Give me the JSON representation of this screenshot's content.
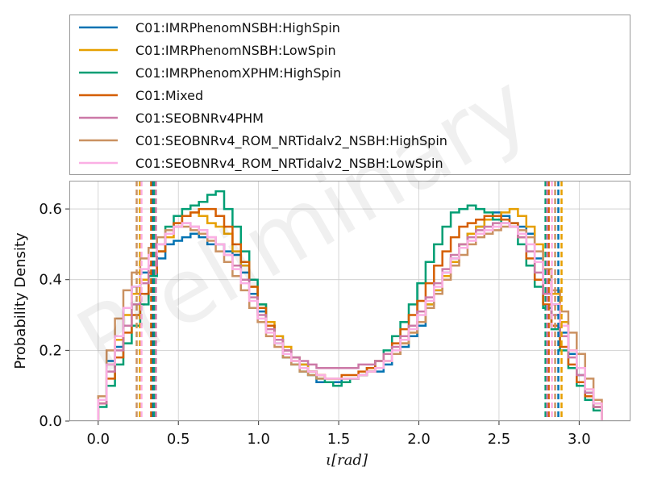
{
  "watermark": "Preliminary",
  "chart_data": {
    "type": "line",
    "step": true,
    "xlabel": "ι[rad]",
    "ylabel": "Probability Density",
    "xlim": [
      -0.18,
      3.32
    ],
    "ylim": [
      0,
      0.68
    ],
    "xticks": [
      "0.0",
      "0.5",
      "1.0",
      "1.5",
      "2.0",
      "2.5",
      "3.0"
    ],
    "yticks": [
      "0.0",
      "0.2",
      "0.4",
      "0.6"
    ],
    "grid": true,
    "legend_position": "top, above plot",
    "series": [
      {
        "name": "C01:IMRPhenomNSBH:HighSpin",
        "color": "#0072b2",
        "edges": [
          0,
          0.0524,
          0.1047,
          0.1571,
          0.2094,
          0.2618,
          0.3142,
          0.3665,
          0.4189,
          0.4712,
          0.5236,
          0.576,
          0.6283,
          0.6807,
          0.733,
          0.7854,
          0.8378,
          0.8901,
          0.9425,
          0.9948,
          1.0472,
          1.0996,
          1.1519,
          1.2043,
          1.2566,
          1.309,
          1.3614,
          1.4137,
          1.4661,
          1.5184,
          1.5708,
          1.6232,
          1.6755,
          1.7279,
          1.7802,
          1.8326,
          1.885,
          1.9373,
          1.9897,
          2.042,
          2.0944,
          2.1468,
          2.1991,
          2.2515,
          2.3038,
          2.3562,
          2.4086,
          2.4609,
          2.5133,
          2.5656,
          2.618,
          2.6704,
          2.7227,
          2.7751,
          2.8274,
          2.8798,
          2.9322,
          2.9845,
          3.0369,
          3.0892,
          3.1416
        ],
        "density": [
          0.06,
          0.17,
          0.21,
          0.32,
          0.38,
          0.42,
          0.44,
          0.46,
          0.5,
          0.51,
          0.52,
          0.53,
          0.52,
          0.5,
          0.5,
          0.48,
          0.47,
          0.42,
          0.36,
          0.31,
          0.27,
          0.24,
          0.2,
          0.18,
          0.16,
          0.14,
          0.11,
          0.11,
          0.11,
          0.12,
          0.12,
          0.13,
          0.14,
          0.14,
          0.16,
          0.19,
          0.21,
          0.24,
          0.27,
          0.33,
          0.37,
          0.42,
          0.46,
          0.5,
          0.53,
          0.55,
          0.57,
          0.59,
          0.58,
          0.56,
          0.55,
          0.53,
          0.46,
          0.4,
          0.33,
          0.25,
          0.19,
          0.13,
          0.08,
          0.04
        ]
      },
      {
        "name": "C01:IMRPhenomNSBH:LowSpin",
        "color": "#e69f00",
        "edges": [
          0,
          0.0524,
          0.1047,
          0.1571,
          0.2094,
          0.2618,
          0.3142,
          0.3665,
          0.4189,
          0.4712,
          0.5236,
          0.576,
          0.6283,
          0.6807,
          0.733,
          0.7854,
          0.8378,
          0.8901,
          0.9425,
          0.9948,
          1.0472,
          1.0996,
          1.1519,
          1.2043,
          1.2566,
          1.309,
          1.3614,
          1.4137,
          1.4661,
          1.5184,
          1.5708,
          1.6232,
          1.6755,
          1.7279,
          1.7802,
          1.8326,
          1.885,
          1.9373,
          1.9897,
          2.042,
          2.0944,
          2.1468,
          2.1991,
          2.2515,
          2.3038,
          2.3562,
          2.4086,
          2.4609,
          2.5133,
          2.5656,
          2.618,
          2.6704,
          2.7227,
          2.7751,
          2.8274,
          2.8798,
          2.9322,
          2.9845,
          3.0369,
          3.0892,
          3.1416
        ],
        "density": [
          0.05,
          0.16,
          0.23,
          0.3,
          0.36,
          0.4,
          0.44,
          0.48,
          0.52,
          0.56,
          0.58,
          0.59,
          0.58,
          0.56,
          0.55,
          0.53,
          0.48,
          0.44,
          0.38,
          0.33,
          0.28,
          0.24,
          0.21,
          0.18,
          0.16,
          0.14,
          0.13,
          0.12,
          0.12,
          0.12,
          0.12,
          0.13,
          0.14,
          0.15,
          0.17,
          0.19,
          0.22,
          0.25,
          0.28,
          0.33,
          0.37,
          0.41,
          0.45,
          0.5,
          0.53,
          0.55,
          0.57,
          0.58,
          0.59,
          0.6,
          0.58,
          0.55,
          0.5,
          0.43,
          0.36,
          0.28,
          0.2,
          0.15,
          0.09,
          0.05
        ]
      },
      {
        "name": "C01:IMRPhenomXPHM:HighSpin",
        "color": "#009e73",
        "edges": [
          0,
          0.0524,
          0.1047,
          0.1571,
          0.2094,
          0.2618,
          0.3142,
          0.3665,
          0.4189,
          0.4712,
          0.5236,
          0.576,
          0.6283,
          0.6807,
          0.733,
          0.7854,
          0.8378,
          0.8901,
          0.9425,
          0.9948,
          1.0472,
          1.0996,
          1.1519,
          1.2043,
          1.2566,
          1.309,
          1.3614,
          1.4137,
          1.4661,
          1.5184,
          1.5708,
          1.6232,
          1.6755,
          1.7279,
          1.7802,
          1.8326,
          1.885,
          1.9373,
          1.9897,
          2.042,
          2.0944,
          2.1468,
          2.1991,
          2.2515,
          2.3038,
          2.3562,
          2.4086,
          2.4609,
          2.5133,
          2.5656,
          2.618,
          2.6704,
          2.7227,
          2.7751,
          2.8274,
          2.8798,
          2.9322,
          2.9845,
          3.0369,
          3.0892,
          3.1416
        ],
        "density": [
          0.04,
          0.1,
          0.16,
          0.22,
          0.27,
          0.33,
          0.41,
          0.48,
          0.55,
          0.58,
          0.6,
          0.61,
          0.62,
          0.64,
          0.65,
          0.6,
          0.55,
          0.48,
          0.4,
          0.33,
          0.27,
          0.22,
          0.18,
          0.16,
          0.14,
          0.13,
          0.12,
          0.11,
          0.1,
          0.11,
          0.12,
          0.13,
          0.15,
          0.17,
          0.2,
          0.24,
          0.28,
          0.33,
          0.39,
          0.45,
          0.5,
          0.55,
          0.59,
          0.6,
          0.61,
          0.6,
          0.59,
          0.57,
          0.56,
          0.55,
          0.5,
          0.44,
          0.38,
          0.32,
          0.26,
          0.2,
          0.15,
          0.1,
          0.06,
          0.03
        ]
      },
      {
        "name": "C01:Mixed",
        "color": "#d55e00",
        "edges": [
          0,
          0.0524,
          0.1047,
          0.1571,
          0.2094,
          0.2618,
          0.3142,
          0.3665,
          0.4189,
          0.4712,
          0.5236,
          0.576,
          0.6283,
          0.6807,
          0.733,
          0.7854,
          0.8378,
          0.8901,
          0.9425,
          0.9948,
          1.0472,
          1.0996,
          1.1519,
          1.2043,
          1.2566,
          1.309,
          1.3614,
          1.4137,
          1.4661,
          1.5184,
          1.5708,
          1.6232,
          1.6755,
          1.7279,
          1.7802,
          1.8326,
          1.885,
          1.9373,
          1.9897,
          2.042,
          2.0944,
          2.1468,
          2.1991,
          2.2515,
          2.3038,
          2.3562,
          2.4086,
          2.4609,
          2.5133,
          2.5656,
          2.618,
          2.6704,
          2.7227,
          2.7751,
          2.8274,
          2.8798,
          2.9322,
          2.9845,
          3.0369,
          3.0892,
          3.1416
        ],
        "density": [
          0.05,
          0.12,
          0.18,
          0.25,
          0.3,
          0.36,
          0.42,
          0.48,
          0.53,
          0.56,
          0.58,
          0.59,
          0.6,
          0.6,
          0.58,
          0.55,
          0.5,
          0.45,
          0.38,
          0.32,
          0.27,
          0.23,
          0.2,
          0.17,
          0.15,
          0.14,
          0.13,
          0.12,
          0.12,
          0.13,
          0.13,
          0.14,
          0.15,
          0.17,
          0.19,
          0.22,
          0.26,
          0.3,
          0.34,
          0.39,
          0.44,
          0.48,
          0.52,
          0.55,
          0.56,
          0.57,
          0.58,
          0.58,
          0.57,
          0.56,
          0.52,
          0.46,
          0.4,
          0.33,
          0.27,
          0.21,
          0.16,
          0.11,
          0.07,
          0.04
        ]
      },
      {
        "name": "C01:SEOBNRv4PHM",
        "color": "#cc79a7",
        "edges": [
          0,
          0.0524,
          0.1047,
          0.1571,
          0.2094,
          0.2618,
          0.3142,
          0.3665,
          0.4189,
          0.4712,
          0.5236,
          0.576,
          0.6283,
          0.6807,
          0.733,
          0.7854,
          0.8378,
          0.8901,
          0.9425,
          0.9948,
          1.0472,
          1.0996,
          1.1519,
          1.2043,
          1.2566,
          1.309,
          1.3614,
          1.4137,
          1.4661,
          1.5184,
          1.5708,
          1.6232,
          1.6755,
          1.7279,
          1.7802,
          1.8326,
          1.885,
          1.9373,
          1.9897,
          2.042,
          2.0944,
          2.1468,
          2.1991,
          2.2515,
          2.3038,
          2.3562,
          2.4086,
          2.4609,
          2.5133,
          2.5656,
          2.618,
          2.6704,
          2.7227,
          2.7751,
          2.8274,
          2.8798,
          2.9322,
          2.9845,
          3.0369,
          3.0892,
          3.1416
        ],
        "density": [
          0.05,
          0.14,
          0.2,
          0.27,
          0.33,
          0.39,
          0.44,
          0.5,
          0.53,
          0.55,
          0.56,
          0.55,
          0.54,
          0.52,
          0.5,
          0.47,
          0.44,
          0.4,
          0.35,
          0.3,
          0.26,
          0.23,
          0.2,
          0.18,
          0.17,
          0.16,
          0.15,
          0.15,
          0.15,
          0.15,
          0.15,
          0.16,
          0.16,
          0.17,
          0.19,
          0.21,
          0.24,
          0.27,
          0.31,
          0.35,
          0.39,
          0.43,
          0.47,
          0.5,
          0.52,
          0.54,
          0.55,
          0.56,
          0.56,
          0.55,
          0.52,
          0.48,
          0.42,
          0.36,
          0.3,
          0.24,
          0.18,
          0.13,
          0.08,
          0.04
        ]
      },
      {
        "name": "C01:SEOBNRv4_ROM_NRTidalv2_NSBH:HighSpin",
        "color": "#ca9161",
        "edges": [
          0,
          0.0524,
          0.1047,
          0.1571,
          0.2094,
          0.2618,
          0.3142,
          0.3665,
          0.4189,
          0.4712,
          0.5236,
          0.576,
          0.6283,
          0.6807,
          0.733,
          0.7854,
          0.8378,
          0.8901,
          0.9425,
          0.9948,
          1.0472,
          1.0996,
          1.1519,
          1.2043,
          1.2566,
          1.309,
          1.3614,
          1.4137,
          1.4661,
          1.5184,
          1.5708,
          1.6232,
          1.6755,
          1.7279,
          1.7802,
          1.8326,
          1.885,
          1.9373,
          1.9897,
          2.042,
          2.0944,
          2.1468,
          2.1991,
          2.2515,
          2.3038,
          2.3562,
          2.4086,
          2.4609,
          2.5133,
          2.5656,
          2.618,
          2.6704,
          2.7227,
          2.7751,
          2.8274,
          2.8798,
          2.9322,
          2.9845,
          3.0369,
          3.0892,
          3.1416
        ],
        "density": [
          0.07,
          0.2,
          0.29,
          0.37,
          0.42,
          0.46,
          0.49,
          0.52,
          0.54,
          0.55,
          0.55,
          0.54,
          0.53,
          0.51,
          0.48,
          0.45,
          0.41,
          0.37,
          0.32,
          0.28,
          0.24,
          0.21,
          0.18,
          0.16,
          0.14,
          0.13,
          0.12,
          0.12,
          0.12,
          0.12,
          0.12,
          0.13,
          0.14,
          0.15,
          0.17,
          0.19,
          0.22,
          0.25,
          0.28,
          0.32,
          0.36,
          0.4,
          0.44,
          0.47,
          0.5,
          0.52,
          0.53,
          0.54,
          0.55,
          0.55,
          0.54,
          0.52,
          0.48,
          0.43,
          0.37,
          0.31,
          0.25,
          0.19,
          0.12,
          0.06
        ]
      },
      {
        "name": "C01:SEOBNRv4_ROM_NRTidalv2_NSBH:LowSpin",
        "color": "#fbafe4",
        "edges": [
          0,
          0.0524,
          0.1047,
          0.1571,
          0.2094,
          0.2618,
          0.3142,
          0.3665,
          0.4189,
          0.4712,
          0.5236,
          0.576,
          0.6283,
          0.6807,
          0.733,
          0.7854,
          0.8378,
          0.8901,
          0.9425,
          0.9948,
          1.0472,
          1.0996,
          1.1519,
          1.2043,
          1.2566,
          1.309,
          1.3614,
          1.4137,
          1.4661,
          1.5184,
          1.5708,
          1.6232,
          1.6755,
          1.7279,
          1.7802,
          1.8326,
          1.885,
          1.9373,
          1.9897,
          2.042,
          2.0944,
          2.1468,
          2.1991,
          2.2515,
          2.3038,
          2.3562,
          2.4086,
          2.4609,
          2.5133,
          2.5656,
          2.618,
          2.6704,
          2.7227,
          2.7751,
          2.8274,
          2.8798,
          2.9322,
          2.9845,
          3.0369,
          3.0892,
          3.1416
        ],
        "density": [
          0.06,
          0.16,
          0.24,
          0.32,
          0.38,
          0.43,
          0.47,
          0.5,
          0.53,
          0.55,
          0.56,
          0.55,
          0.54,
          0.52,
          0.5,
          0.47,
          0.43,
          0.39,
          0.34,
          0.29,
          0.25,
          0.22,
          0.19,
          0.17,
          0.15,
          0.14,
          0.13,
          0.12,
          0.12,
          0.12,
          0.12,
          0.13,
          0.14,
          0.15,
          0.17,
          0.2,
          0.23,
          0.26,
          0.3,
          0.34,
          0.38,
          0.42,
          0.46,
          0.49,
          0.51,
          0.53,
          0.54,
          0.55,
          0.56,
          0.55,
          0.53,
          0.5,
          0.45,
          0.39,
          0.33,
          0.27,
          0.2,
          0.15,
          0.09,
          0.05
        ]
      }
    ],
    "vlines": [
      {
        "x": 0.34,
        "color": "#0072b2"
      },
      {
        "x": 2.87,
        "color": "#0072b2"
      },
      {
        "x": 0.26,
        "color": "#e69f00"
      },
      {
        "x": 2.89,
        "color": "#e69f00"
      },
      {
        "x": 0.35,
        "color": "#009e73"
      },
      {
        "x": 2.79,
        "color": "#009e73"
      },
      {
        "x": 0.33,
        "color": "#d55e00"
      },
      {
        "x": 2.81,
        "color": "#d55e00"
      },
      {
        "x": 0.36,
        "color": "#cc79a7"
      },
      {
        "x": 2.8,
        "color": "#cc79a7"
      },
      {
        "x": 0.24,
        "color": "#ca9161"
      },
      {
        "x": 2.85,
        "color": "#ca9161"
      },
      {
        "x": 0.27,
        "color": "#fbafe4"
      },
      {
        "x": 2.83,
        "color": "#fbafe4"
      }
    ]
  }
}
